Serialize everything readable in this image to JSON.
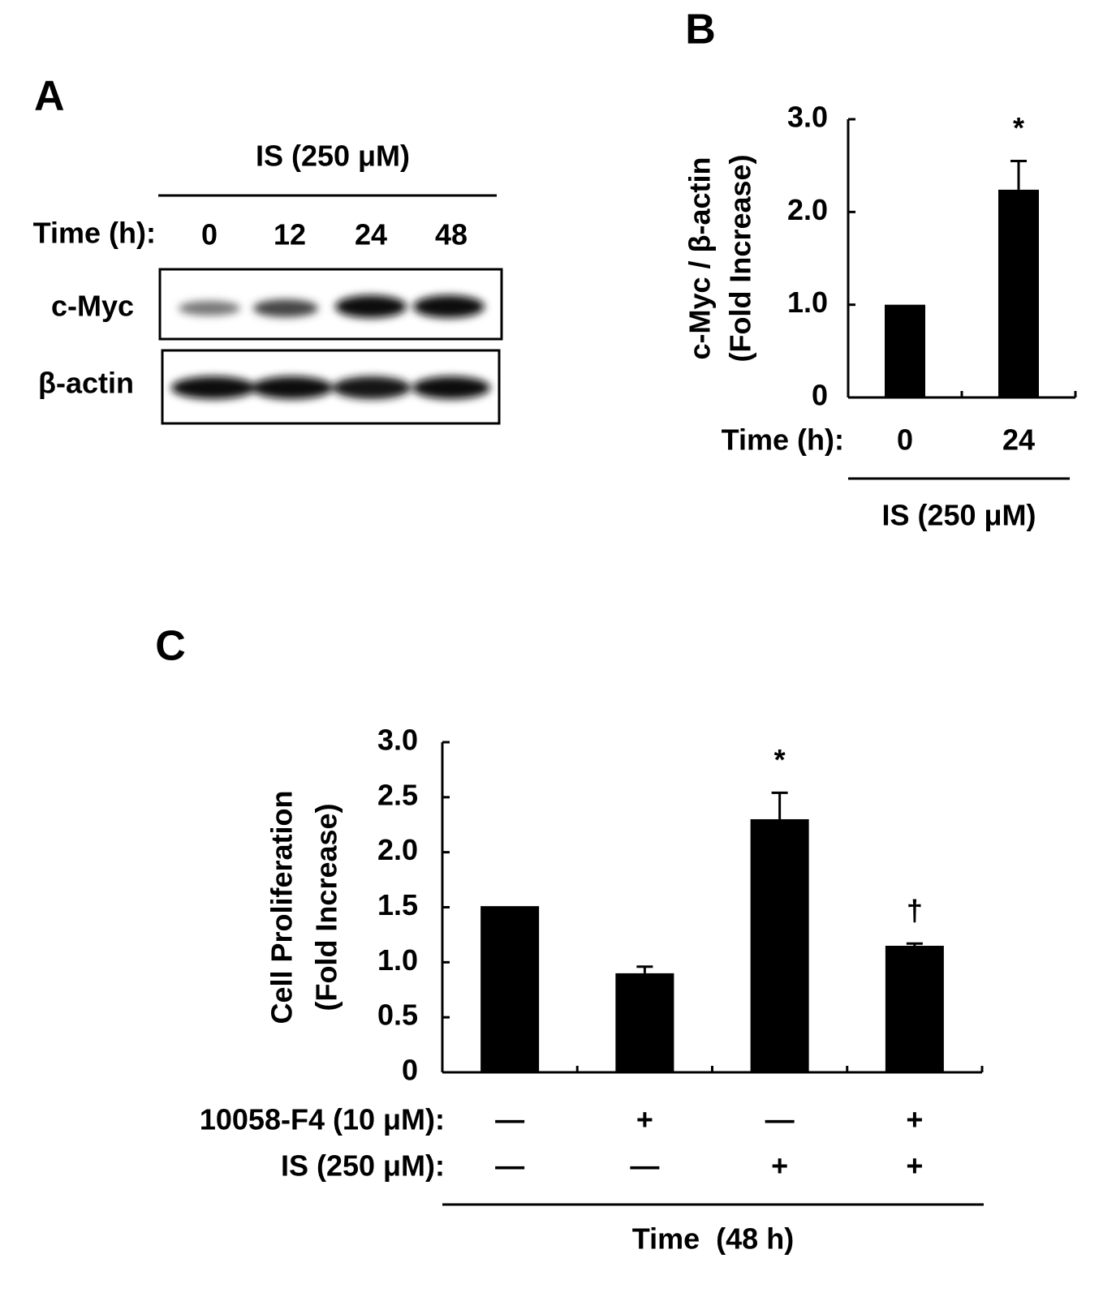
{
  "panel_a": {
    "label": "A",
    "treatment": "IS (250 μM)",
    "time_label": "Time (h):",
    "lanes": [
      "0",
      "12",
      "24",
      "48"
    ],
    "rows": [
      "c-Myc",
      "β-actin"
    ]
  },
  "chart_data": [
    {
      "type": "bar",
      "panel_label": "B",
      "ylabel": [
        "c-Myc / β-actin",
        "(Fold Increase)"
      ],
      "x_label": "Time (h):",
      "categories": [
        "0",
        "24"
      ],
      "values": [
        1.0,
        2.24
      ],
      "errors": [
        0,
        0.31
      ],
      "annotations": [
        null,
        "*"
      ],
      "color": "#000000",
      "ylim": [
        0,
        3
      ],
      "yticks": [
        0,
        {
          "value": 1,
          "label": "1.0"
        },
        {
          "value": 2,
          "label": "2.0"
        },
        {
          "value": 3,
          "label": "3.0"
        }
      ],
      "group_label": "IS (250 μM)"
    },
    {
      "type": "bar",
      "panel_label": "C",
      "ylabel": [
        "Cell Proliferation",
        "(Fold Increase)"
      ],
      "categories": [
        null,
        null,
        null,
        null
      ],
      "values": [
        1.51,
        0.9,
        2.3,
        1.15
      ],
      "errors": [
        0,
        0.06,
        0.24,
        0.02
      ],
      "annotations": [
        null,
        null,
        "*",
        "†"
      ],
      "color": "#000000",
      "ylim": [
        0,
        3
      ],
      "yticks": [
        0,
        {
          "value": 0.5,
          "label": "0.5"
        },
        {
          "value": 1,
          "label": "1.0"
        },
        {
          "value": 1.5,
          "label": "1.5"
        },
        {
          "value": 2,
          "label": "2.0"
        },
        {
          "value": 2.5,
          "label": "2.5"
        },
        {
          "value": 3,
          "label": "3.0"
        }
      ],
      "conditions": [
        {
          "label": "10058-F4 (10 μM):",
          "values": [
            "—",
            "+",
            "—",
            "+"
          ]
        },
        {
          "label": "IS (250 μM):",
          "values": [
            "—",
            "—",
            "+",
            "+"
          ]
        }
      ],
      "group_label": "Time  (48 h)"
    }
  ]
}
